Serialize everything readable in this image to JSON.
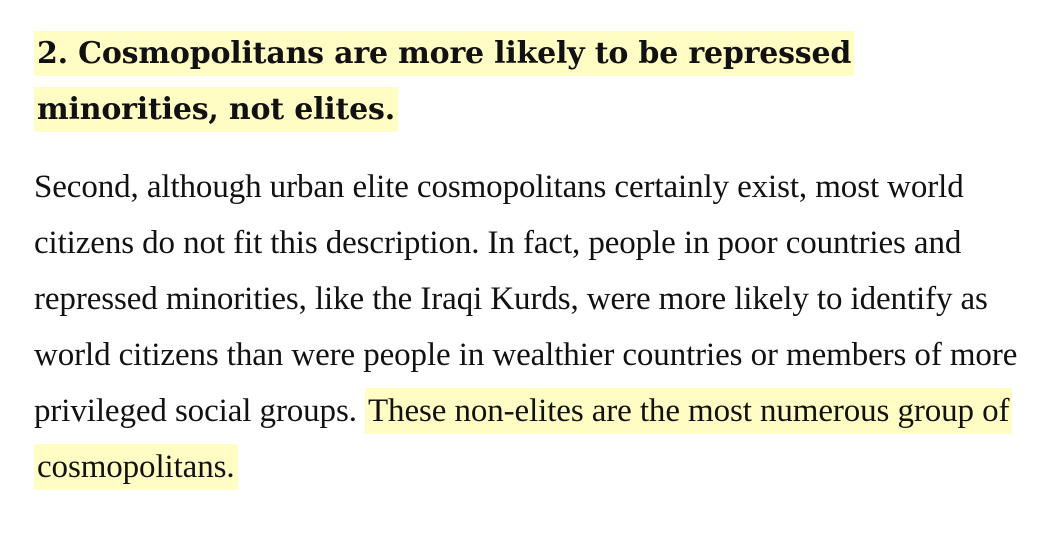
{
  "heading": {
    "text": "2. Cosmopolitans are more likely to be repressed minorities, not elites.",
    "highlighted": true
  },
  "paragraph": {
    "plain_text": "Second, although urban elite cosmopolitans certainly exist, most world citizens do not fit this description. In fact, people in poor countries and repressed minorities, like the Iraqi Kurds, were more likely to identify as world citizens than were people in wealthier countries or members of more privileged social groups.",
    "highlighted_text": "These non-elites are the most numerous group of cosmopolitans."
  },
  "colors": {
    "highlight": "#fffdc4",
    "text": "#111111",
    "background": "#ffffff"
  }
}
